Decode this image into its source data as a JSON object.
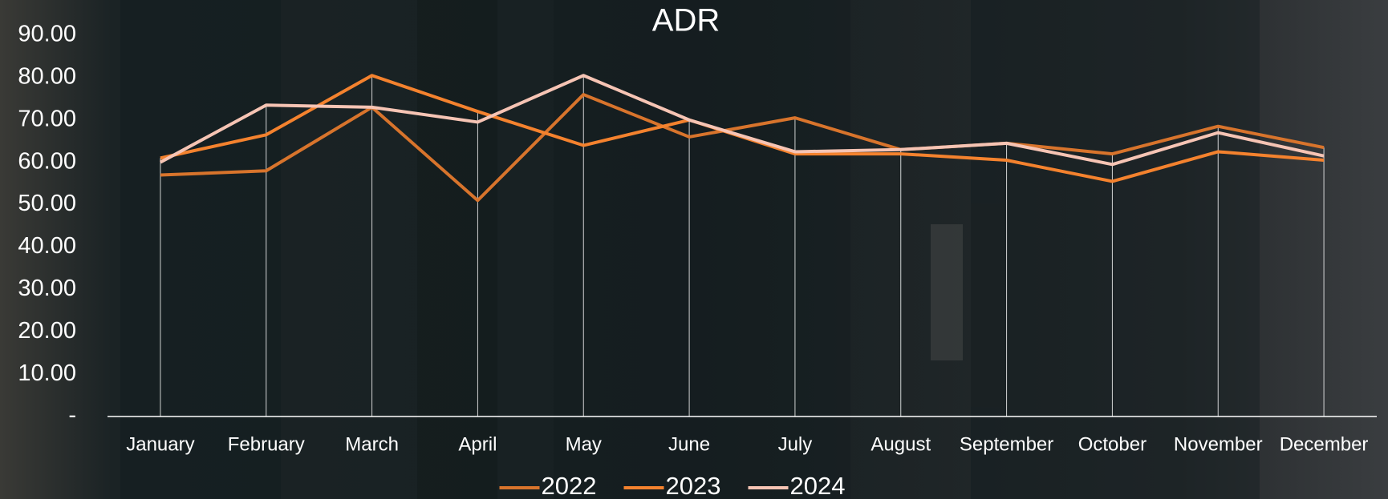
{
  "chart_data": {
    "type": "line",
    "title": "ADR",
    "categories": [
      "January",
      "February",
      "March",
      "April",
      "May",
      "June",
      "July",
      "August",
      "September",
      "October",
      "November",
      "December"
    ],
    "series": [
      {
        "name": "2022",
        "color": "#d8742c",
        "values": [
          57,
          58,
          73,
          51,
          76,
          66,
          70.5,
          63,
          64.5,
          62,
          68.5,
          63.5
        ]
      },
      {
        "name": "2023",
        "color": "#f4822e",
        "values": [
          61,
          66.5,
          80.5,
          72,
          64,
          70,
          62,
          62,
          60.5,
          55.5,
          62.5,
          60.5
        ]
      },
      {
        "name": "2024",
        "color": "#f6c4b4",
        "values": [
          60,
          73.5,
          73,
          69.5,
          80.5,
          70,
          62.5,
          63,
          64.5,
          59.5,
          67,
          61.5
        ]
      }
    ],
    "ylim": [
      0,
      90
    ],
    "yticks": [
      {
        "value": 0,
        "label": "-"
      },
      {
        "value": 10,
        "label": "10.00"
      },
      {
        "value": 20,
        "label": "20.00"
      },
      {
        "value": 30,
        "label": "30.00"
      },
      {
        "value": 40,
        "label": "40.00"
      },
      {
        "value": 50,
        "label": "50.00"
      },
      {
        "value": 60,
        "label": "60.00"
      },
      {
        "value": 70,
        "label": "70.00"
      },
      {
        "value": 80,
        "label": "80.00"
      },
      {
        "value": 90,
        "label": "90.00"
      }
    ],
    "legend": "bottom"
  }
}
